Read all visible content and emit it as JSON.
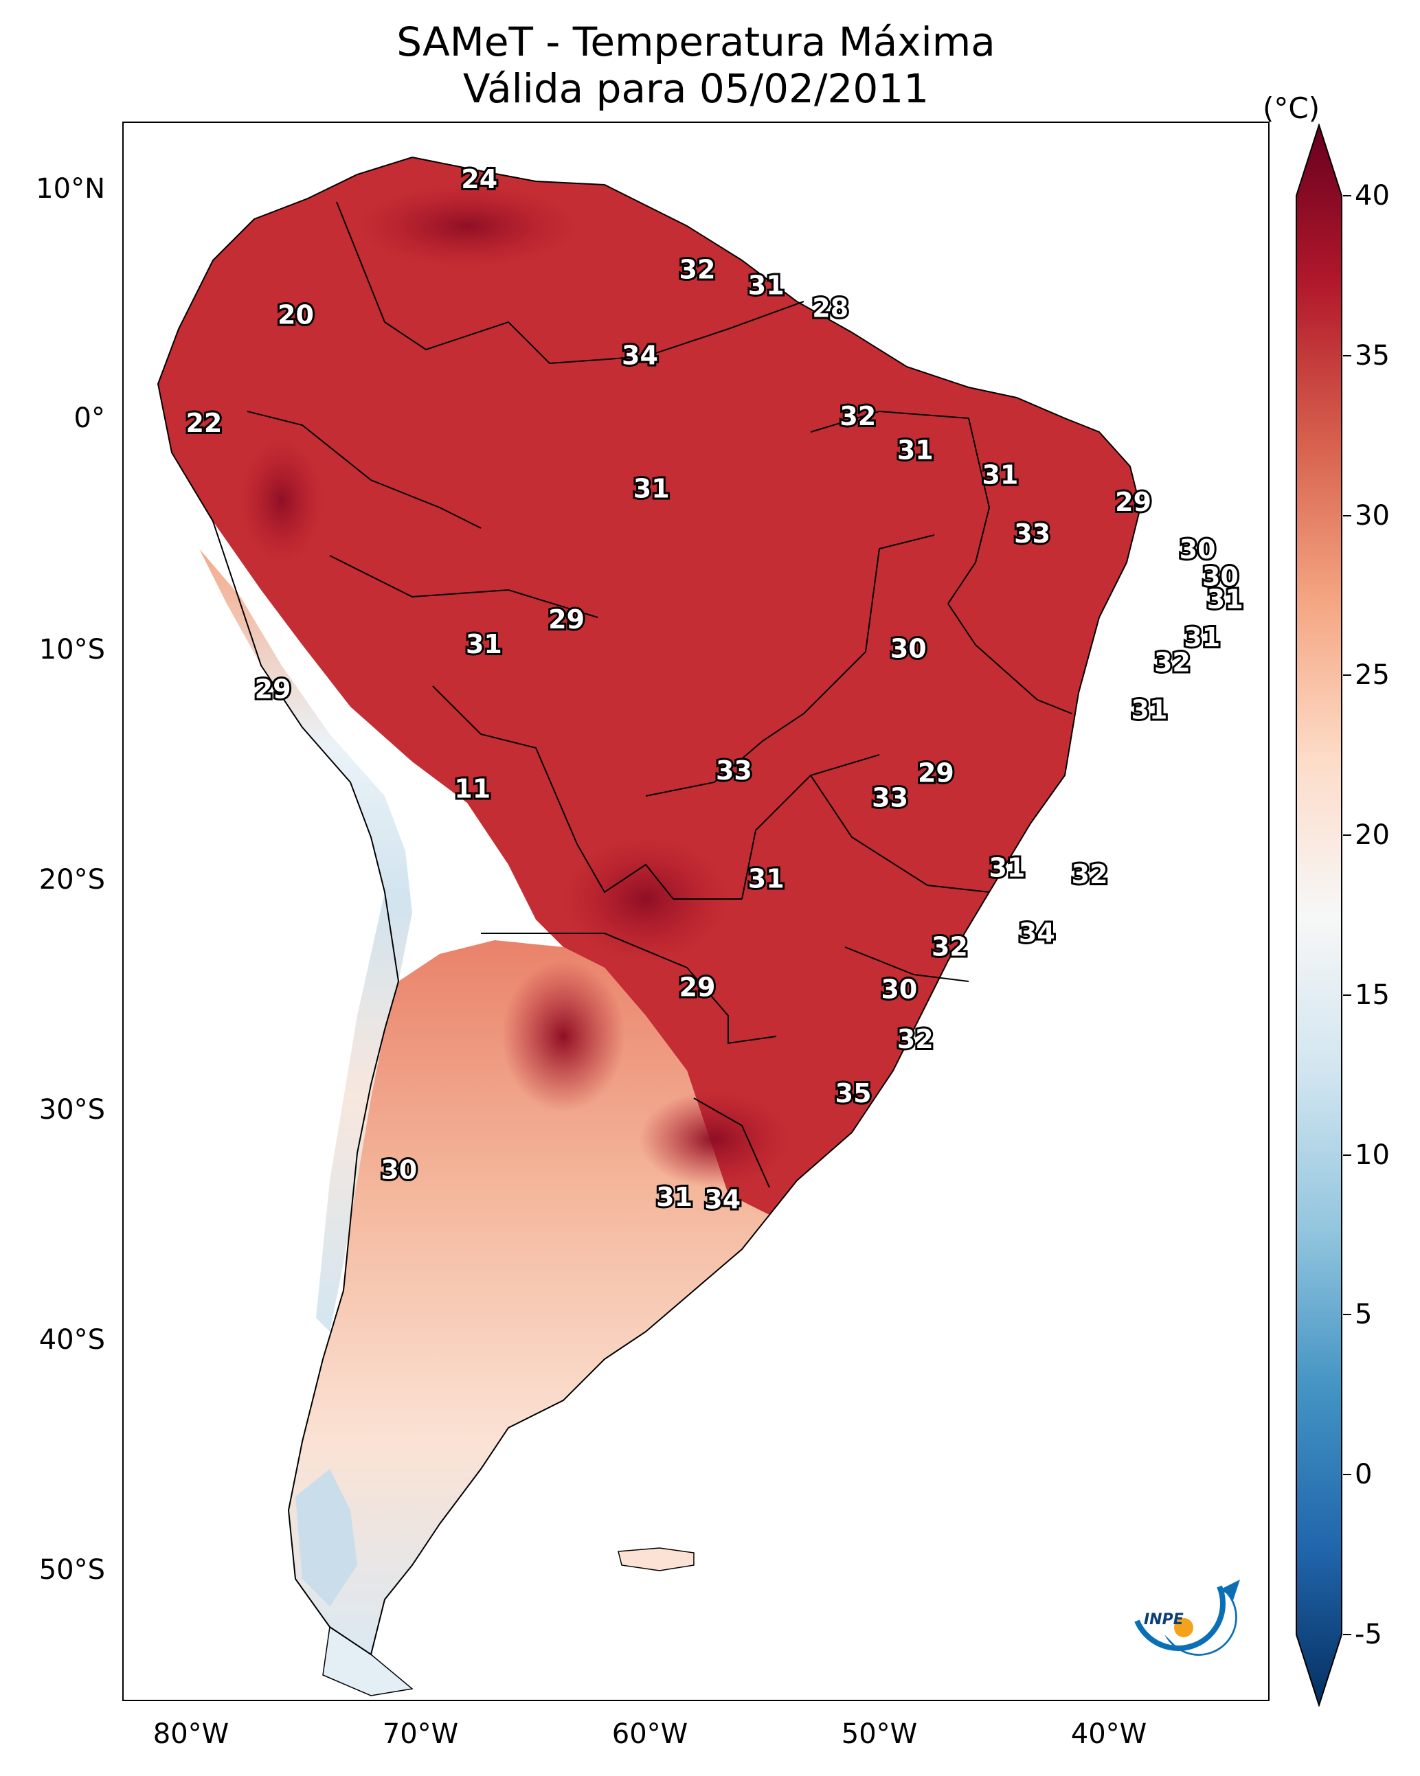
{
  "title": {
    "line1": "SAMeT - Temperatura Máxima",
    "line2": "Válida para 05/02/2011"
  },
  "map": {
    "region": "South America",
    "lon_range": [
      -83,
      -33
    ],
    "lat_range": [
      -57,
      13
    ],
    "lat_labels": [
      "10°N",
      "0°",
      "10°S",
      "20°S",
      "30°S",
      "40°S",
      "50°S"
    ],
    "lat_values": [
      10,
      0,
      -10,
      -20,
      -30,
      -40,
      -50
    ],
    "lon_labels": [
      "80°W",
      "70°W",
      "60°W",
      "50°W",
      "40°W"
    ],
    "lon_values": [
      -80,
      -70,
      -60,
      -50,
      -40
    ]
  },
  "colorbar": {
    "unit": "(°C)",
    "tick_labels": [
      "40",
      "35",
      "30",
      "25",
      "20",
      "15",
      "10",
      "5",
      "0",
      "-5"
    ],
    "tick_values": [
      40,
      35,
      30,
      25,
      20,
      15,
      10,
      5,
      0,
      -5
    ],
    "range": [
      -5,
      40
    ],
    "colors_hot_to_cold": [
      "#67001f",
      "#b2182b",
      "#d6604d",
      "#f4a582",
      "#fddbc7",
      "#f7f7f7",
      "#d1e5f0",
      "#92c5de",
      "#4393c3",
      "#2166ac",
      "#053061"
    ]
  },
  "stations": [
    {
      "label": "24",
      "lon": -67.5,
      "lat": 10.5
    },
    {
      "label": "20",
      "lon": -75.5,
      "lat": 4.5
    },
    {
      "label": "32",
      "lon": -58.0,
      "lat": 6.5
    },
    {
      "label": "31",
      "lon": -55.0,
      "lat": 5.8
    },
    {
      "label": "28",
      "lon": -52.2,
      "lat": 4.8
    },
    {
      "label": "34",
      "lon": -60.5,
      "lat": 2.7
    },
    {
      "label": "22",
      "lon": -79.5,
      "lat": -0.3
    },
    {
      "label": "32",
      "lon": -51.0,
      "lat": 0.0
    },
    {
      "label": "31",
      "lon": -48.5,
      "lat": -1.5
    },
    {
      "label": "31",
      "lon": -44.8,
      "lat": -2.6
    },
    {
      "label": "31",
      "lon": -60.0,
      "lat": -3.2
    },
    {
      "label": "29",
      "lon": -39.0,
      "lat": -3.8
    },
    {
      "label": "33",
      "lon": -43.4,
      "lat": -5.2
    },
    {
      "label": "30",
      "lon": -36.2,
      "lat": -5.9
    },
    {
      "label": "30",
      "lon": -35.2,
      "lat": -7.1
    },
    {
      "label": "31",
      "lon": -35.0,
      "lat": -8.1
    },
    {
      "label": "29",
      "lon": -63.7,
      "lat": -9.0
    },
    {
      "label": "31",
      "lon": -67.3,
      "lat": -10.1
    },
    {
      "label": "30",
      "lon": -48.8,
      "lat": -10.3
    },
    {
      "label": "31",
      "lon": -36.0,
      "lat": -9.8
    },
    {
      "label": "32",
      "lon": -37.3,
      "lat": -10.9
    },
    {
      "label": "29",
      "lon": -76.5,
      "lat": -12.1
    },
    {
      "label": "31",
      "lon": -38.3,
      "lat": -13.0
    },
    {
      "label": "33",
      "lon": -56.4,
      "lat": -15.7
    },
    {
      "label": "29",
      "lon": -47.6,
      "lat": -15.8
    },
    {
      "label": "33",
      "lon": -49.6,
      "lat": -16.9
    },
    {
      "label": "11",
      "lon": -67.8,
      "lat": -16.5
    },
    {
      "label": "31",
      "lon": -44.5,
      "lat": -20.0
    },
    {
      "label": "32",
      "lon": -40.9,
      "lat": -20.3
    },
    {
      "label": "31",
      "lon": -55.0,
      "lat": -20.5
    },
    {
      "label": "34",
      "lon": -43.2,
      "lat": -22.9
    },
    {
      "label": "32",
      "lon": -47.0,
      "lat": -23.5
    },
    {
      "label": "29",
      "lon": -58.0,
      "lat": -25.3
    },
    {
      "label": "30",
      "lon": -49.2,
      "lat": -25.4
    },
    {
      "label": "32",
      "lon": -48.5,
      "lat": -27.6
    },
    {
      "label": "35",
      "lon": -51.2,
      "lat": -30.0
    },
    {
      "label": "30",
      "lon": -71.0,
      "lat": -33.4
    },
    {
      "label": "31",
      "lon": -59.0,
      "lat": -34.6
    },
    {
      "label": "34",
      "lon": -56.9,
      "lat": -34.7
    }
  ]
}
